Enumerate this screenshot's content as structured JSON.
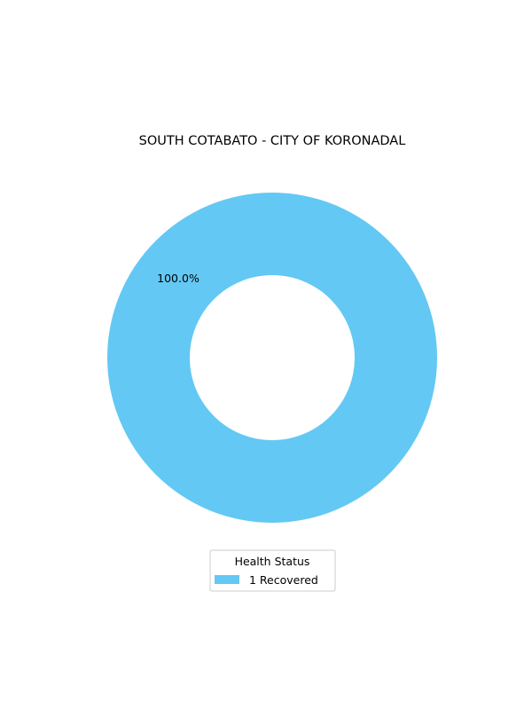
{
  "chart_data": {
    "type": "pie",
    "title": "SOUTH COTABATO - CITY OF KORONADAL",
    "donut": true,
    "slices": [
      {
        "label": "Recovered",
        "value": 1,
        "percent_label": "100.0%",
        "legend_label": "1  Recovered",
        "color": "#64c8f4"
      }
    ],
    "legend": {
      "title": "Health Status",
      "placement": "bottom-center"
    }
  }
}
